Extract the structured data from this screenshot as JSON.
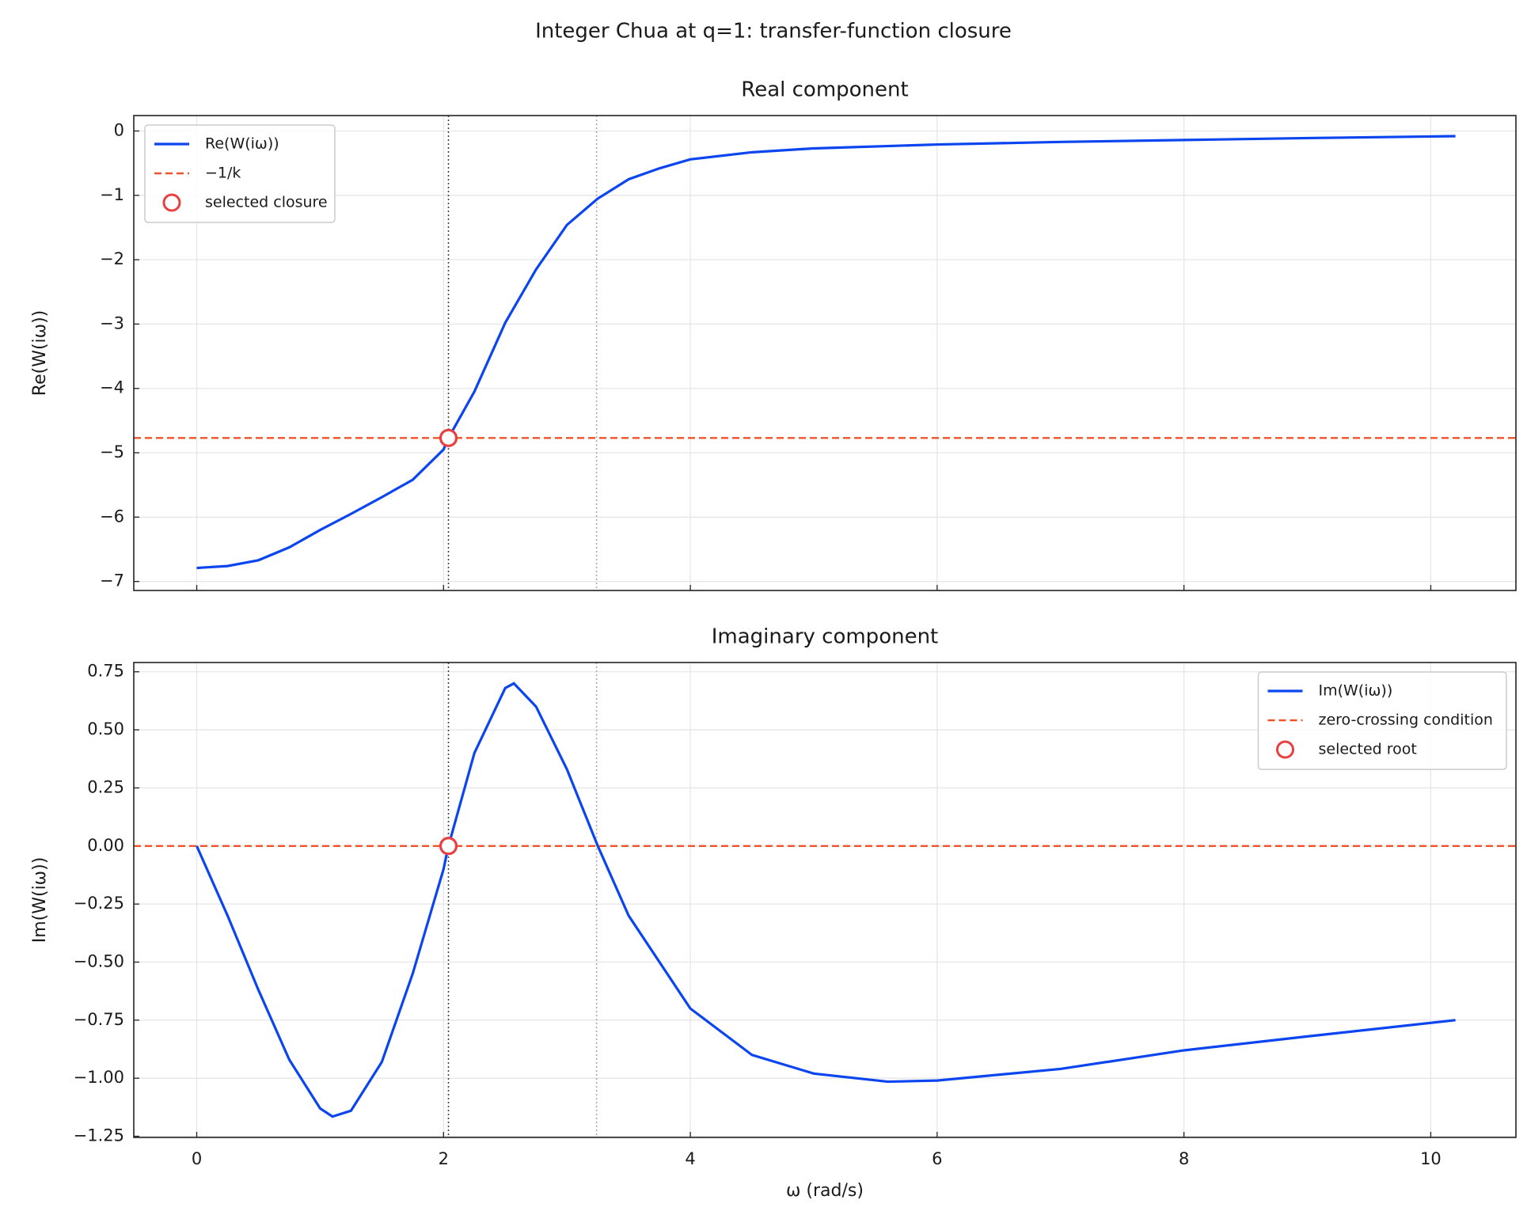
{
  "title": "Integer Chua at q=1: transfer-function closure",
  "chart_data": [
    {
      "type": "line",
      "title": "Real component",
      "ylabel": "Re(W(iω))",
      "xlim": [
        -0.51,
        10.69
      ],
      "ylim": [
        -7.14,
        0.24
      ],
      "xticks": [
        0,
        2,
        4,
        6,
        8,
        10
      ],
      "show_xtick_labels": false,
      "yticks": [
        0,
        {
          "value": -1,
          "label": "−1"
        },
        {
          "value": -2,
          "label": "−2"
        },
        {
          "value": -3,
          "label": "−3"
        },
        {
          "value": -4,
          "label": "−4"
        },
        {
          "value": -5,
          "label": "−5"
        },
        {
          "value": -6,
          "label": "−6"
        },
        {
          "value": -7,
          "label": "−7"
        }
      ],
      "grid": true,
      "legend": "upper left",
      "vlines": [
        {
          "x": 2.04,
          "color": "#444444"
        },
        {
          "x": 3.24,
          "color": "#aaaaaa"
        }
      ],
      "series": [
        {
          "name": "Re(W(iω))",
          "color": "#0b45f0",
          "style": "solid",
          "x": [
            0,
            0.25,
            0.5,
            0.75,
            1,
            1.25,
            1.5,
            1.75,
            2,
            2.04,
            2.25,
            2.5,
            2.75,
            3,
            3.25,
            3.5,
            3.75,
            4,
            4.5,
            5,
            6,
            7,
            8,
            9,
            10.2
          ],
          "values": [
            -6.79,
            -6.76,
            -6.67,
            -6.47,
            -6.2,
            -5.95,
            -5.69,
            -5.42,
            -4.95,
            -4.77,
            -4.05,
            -2.98,
            -2.15,
            -1.46,
            -1.05,
            -0.75,
            -0.58,
            -0.44,
            -0.33,
            -0.27,
            -0.21,
            -0.17,
            -0.14,
            -0.11,
            -0.08
          ]
        },
        {
          "name": "−1/k",
          "color": "#f0522a",
          "style": "dashed",
          "hline": -4.77
        },
        {
          "name": "selected closure",
          "color": "#e84040",
          "style": "marker",
          "x": [
            2.04
          ],
          "values": [
            -4.77
          ]
        }
      ]
    },
    {
      "type": "line",
      "title": "Imaginary component",
      "ylabel": "Im(W(iω))",
      "xlabel": "ω (rad/s)",
      "xlim": [
        -0.51,
        10.69
      ],
      "ylim": [
        -1.255,
        0.79
      ],
      "xticks": [
        0,
        2,
        4,
        6,
        8,
        10
      ],
      "show_xtick_labels": true,
      "yticks": [
        0.75,
        {
          "value": 0.5,
          "label": "0.50"
        },
        0.25,
        {
          "value": 0,
          "label": "0.00"
        },
        {
          "value": -0.25,
          "label": "−0.25"
        },
        {
          "value": -0.5,
          "label": "−0.50"
        },
        {
          "value": -0.75,
          "label": "−0.75"
        },
        {
          "value": -1,
          "label": "−1.00"
        },
        {
          "value": -1.25,
          "label": "−1.25"
        }
      ],
      "grid": true,
      "legend": "upper right",
      "vlines": [
        {
          "x": 2.04,
          "color": "#444444"
        },
        {
          "x": 3.24,
          "color": "#aaaaaa"
        }
      ],
      "series": [
        {
          "name": "Im(W(iω))",
          "color": "#0b45f0",
          "style": "solid",
          "x": [
            0,
            0.25,
            0.5,
            0.75,
            1,
            1.1,
            1.25,
            1.5,
            1.75,
            2,
            2.04,
            2.25,
            2.5,
            2.57,
            2.75,
            3,
            3.25,
            3.5,
            4,
            4.5,
            5,
            5.6,
            6,
            7,
            8,
            9,
            10.2
          ],
          "values": [
            0,
            -0.3,
            -0.62,
            -0.92,
            -1.13,
            -1.165,
            -1.14,
            -0.93,
            -0.55,
            -0.1,
            0,
            0.4,
            0.68,
            0.7,
            0.6,
            0.33,
            0,
            -0.3,
            -0.7,
            -0.9,
            -0.98,
            -1.015,
            -1.01,
            -0.96,
            -0.88,
            -0.82,
            -0.75
          ]
        },
        {
          "name": "zero-crossing condition",
          "color": "#f0522a",
          "style": "dashed",
          "hline": 0
        },
        {
          "name": "selected root",
          "color": "#e84040",
          "style": "marker",
          "x": [
            2.04
          ],
          "values": [
            0
          ]
        }
      ]
    }
  ]
}
